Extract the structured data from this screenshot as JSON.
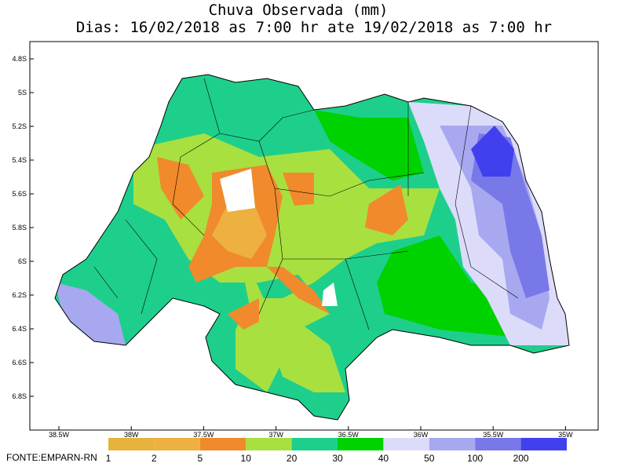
{
  "title": "Chuva Observada (mm)",
  "subtitle": "Dias: 16/02/2018 as 7:00 hr ate 19/02/2018 as 7:00 hr",
  "lat_labels": [
    "4.8S",
    "5S",
    "5.2S",
    "5.4S",
    "5.6S",
    "5.8S",
    "6S",
    "6.2S",
    "6.4S",
    "6.6S",
    "6.8S"
  ],
  "lon_labels": [
    "38.5W",
    "38W",
    "37.5W",
    "37W",
    "36.5W",
    "36W",
    "35.5W",
    "35W"
  ],
  "legend": {
    "colors": [
      "#e6b43c",
      "#eeb040",
      "#f08a2c",
      "#a8e040",
      "#1ecf8c",
      "#00d200",
      "#dcdcfa",
      "#a8a8f0",
      "#7878e8",
      "#4040ee"
    ],
    "labels": [
      "1",
      "2",
      "5",
      "10",
      "20",
      "30",
      "40",
      "50",
      "100",
      "200"
    ]
  },
  "source": "FONTE:EMPARN-RN"
}
